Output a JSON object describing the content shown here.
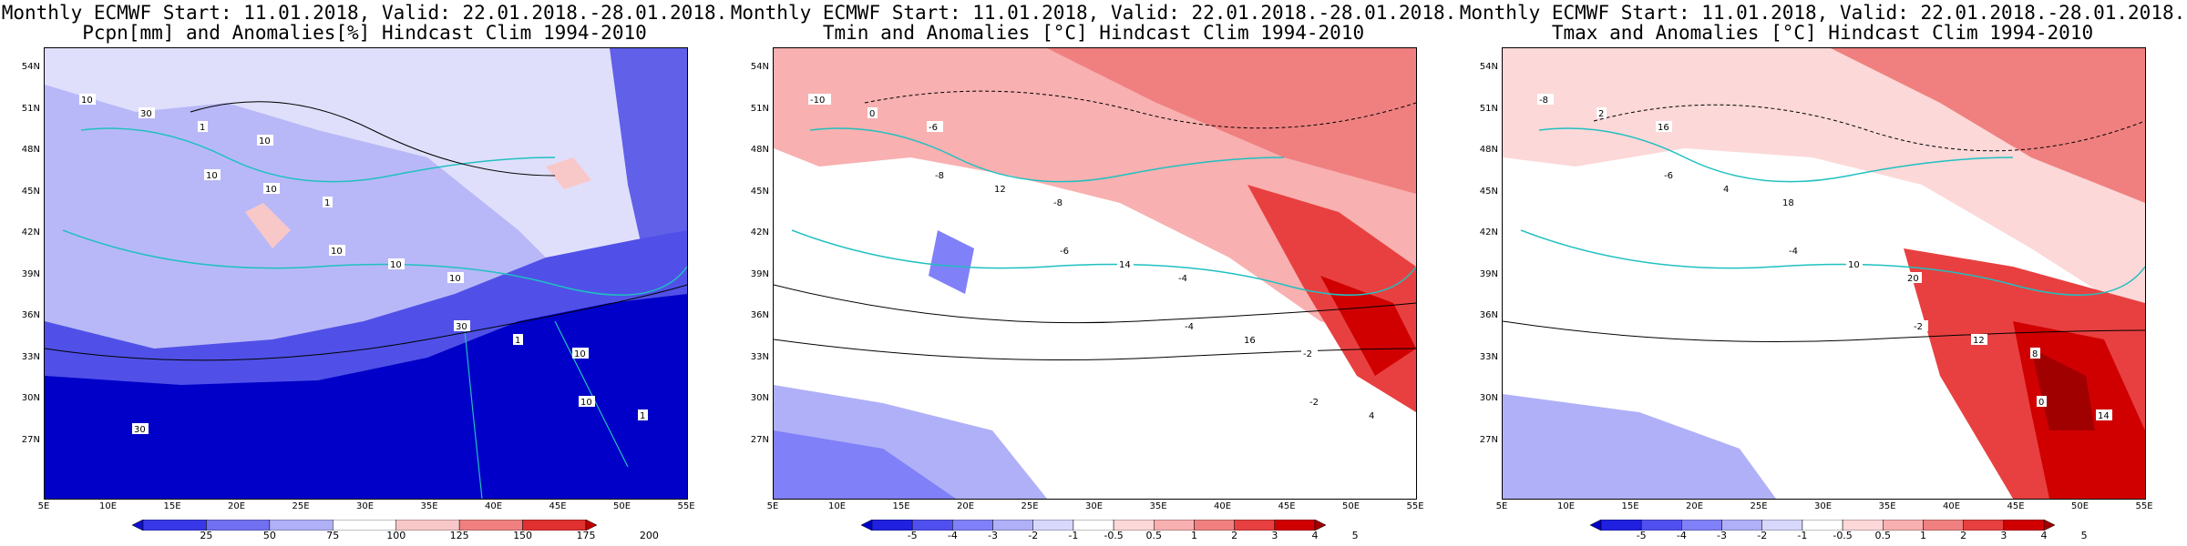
{
  "panels": [
    {
      "id": "precip",
      "title_line1": "Monthly ECMWF Start: 11.01.2018, Valid: 22.01.2018.-28.01.2018.",
      "title_line2": "Pcpn[mm] and Anomalies[%] Hindcast Clim 1994-2010",
      "colorbar_labels": [
        "25",
        "50",
        "75",
        "100",
        "125",
        "150",
        "175",
        "200"
      ],
      "colorbar_colors": [
        "#1010d0",
        "#3838e8",
        "#7070f0",
        "#b0b0f8",
        "#ffffff",
        "#f8c8c8",
        "#f08080",
        "#e03030",
        "#c00000"
      ],
      "contour_labels": [
        "10",
        "10",
        "10",
        "30",
        "10",
        "30",
        "10",
        "10",
        "1",
        "1",
        "1",
        "1",
        "10",
        "10",
        "30",
        "10"
      ]
    },
    {
      "id": "tmin",
      "title_line1": "Monthly ECMWF Start: 11.01.2018, Valid: 22.01.2018.-28.01.2018.",
      "title_line2": "Tmin and Anomalies [°C] Hindcast Clim 1994-2010",
      "colorbar_labels": [
        "-5",
        "-4",
        "-3",
        "-2",
        "-1",
        "-0.5",
        "0.5",
        "1",
        "2",
        "3",
        "4",
        "5"
      ],
      "colorbar_colors": [
        "#0000c8",
        "#2020e0",
        "#5050f0",
        "#8080f8",
        "#b0b0f8",
        "#d8d8fc",
        "#ffffff",
        "#fcd8d8",
        "#f8b0b0",
        "#f08080",
        "#e84040",
        "#d00000",
        "#a00000"
      ],
      "contour_labels": [
        "-10",
        "-8",
        "-6",
        "-4",
        "-2",
        "0",
        "12",
        "14",
        "16",
        "4",
        "-6",
        "-8",
        "-4",
        "-2"
      ]
    },
    {
      "id": "tmax",
      "title_line1": "Monthly ECMWF Start: 11.01.2018, Valid: 22.01.2018.-28.01.2018.",
      "title_line2": "Tmax and Anomalies [°C] Hindcast Clim 1994-2010",
      "colorbar_labels": [
        "-5",
        "-4",
        "-3",
        "-2",
        "-1",
        "-0.5",
        "0.5",
        "1",
        "2",
        "3",
        "4",
        "5"
      ],
      "colorbar_colors": [
        "#0000c8",
        "#2020e0",
        "#5050f0",
        "#8080f8",
        "#b0b0f8",
        "#d8d8fc",
        "#ffffff",
        "#fcd8d8",
        "#f8b0b0",
        "#f08080",
        "#e84040",
        "#d00000",
        "#a00000"
      ],
      "contour_labels": [
        "-8",
        "-6",
        "-4",
        "-2",
        "0",
        "2",
        "4",
        "10",
        "12",
        "14",
        "16",
        "18",
        "20",
        "8"
      ]
    }
  ],
  "axes": {
    "lat_labels": [
      "54N",
      "51N",
      "48N",
      "45N",
      "42N",
      "39N",
      "36N",
      "33N",
      "30N",
      "27N"
    ],
    "lon_labels": [
      "5E",
      "10E",
      "15E",
      "20E",
      "25E",
      "30E",
      "35E",
      "40E",
      "45E",
      "50E",
      "55E"
    ]
  }
}
